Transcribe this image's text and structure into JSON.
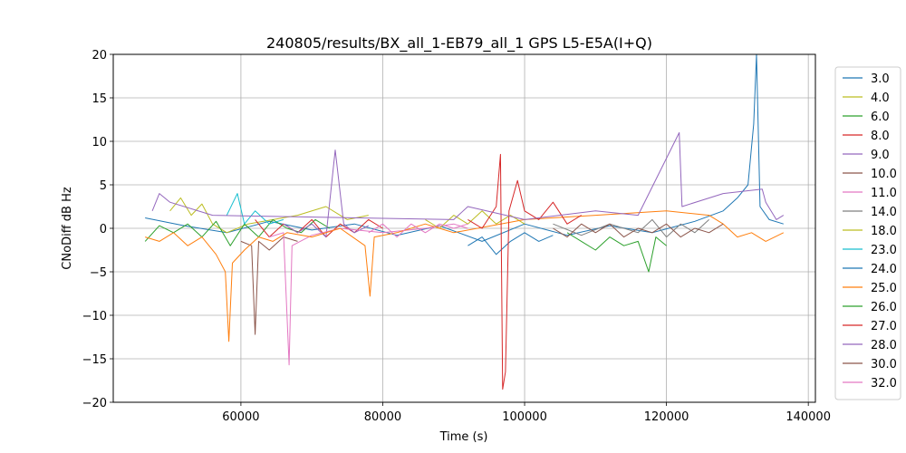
{
  "chart_data": {
    "type": "line",
    "title": "240805/results/BX_all_1-EB79_all_1 GPS L5-E5A(I+Q)",
    "xlabel": "Time (s)",
    "ylabel": "CNoDiff dB Hz",
    "xlim": [
      42000,
      141000
    ],
    "ylim": [
      -20,
      20
    ],
    "xticks": [
      60000,
      80000,
      100000,
      120000,
      140000
    ],
    "xtick_labels": [
      "60000",
      "80000",
      "100000",
      "120000",
      "140000"
    ],
    "yticks": [
      -20,
      -15,
      -10,
      -5,
      0,
      5,
      10,
      15,
      20
    ],
    "ytick_labels": [
      "−20",
      "−15",
      "−10",
      "−5",
      "0",
      "5",
      "10",
      "15",
      "20"
    ],
    "grid": true,
    "legend_position": "right-outside",
    "series": [
      {
        "name": "3.0",
        "color": "#1f77b4",
        "values": [
          [
            46500,
            1.2
          ],
          [
            52000,
            0.3
          ],
          [
            58000,
            -0.5
          ],
          [
            64000,
            0.8
          ],
          [
            70000,
            -0.2
          ],
          [
            76000,
            0.5
          ],
          [
            82000,
            -0.8
          ],
          [
            88000,
            0.3
          ],
          [
            94000,
            -1.5
          ],
          [
            100000,
            0.5
          ],
          [
            106000,
            -0.8
          ],
          [
            112000,
            0.3
          ],
          [
            118000,
            -0.5
          ],
          [
            124000,
            0.8
          ],
          [
            128000,
            2.0
          ],
          [
            130000,
            3.5
          ],
          [
            131500,
            5.0
          ],
          [
            132300,
            12.0
          ],
          [
            132700,
            20.0
          ],
          [
            133200,
            2.5
          ],
          [
            134500,
            1.0
          ],
          [
            136500,
            0.5
          ]
        ]
      },
      {
        "name": "4.0",
        "color": "#bcbd22",
        "values": [
          [
            50000,
            2.0
          ],
          [
            51500,
            3.5
          ],
          [
            53000,
            1.5
          ],
          [
            54500,
            2.8
          ],
          [
            56000,
            0.5
          ],
          [
            58000,
            -0.5
          ],
          [
            61000,
            0.5
          ],
          [
            68000,
            1.5
          ],
          [
            72000,
            2.5
          ],
          [
            75000,
            1.0
          ],
          [
            78000,
            1.5
          ]
        ]
      },
      {
        "name": "6.0",
        "color": "#2ca02c",
        "values": [
          [
            46500,
            -1.5
          ],
          [
            48500,
            0.3
          ],
          [
            50500,
            -0.5
          ],
          [
            52500,
            0.5
          ],
          [
            54500,
            -1.0
          ],
          [
            56500,
            0.8
          ],
          [
            58500,
            -2.0
          ],
          [
            60500,
            0.5
          ],
          [
            62500,
            -1.0
          ],
          [
            64500,
            1.0
          ],
          [
            66500,
            0.0
          ],
          [
            68500,
            -0.5
          ],
          [
            70500,
            1.0
          ],
          [
            72500,
            0.0
          ]
        ]
      },
      {
        "name": "8.0",
        "color": "#d62728",
        "values": [
          [
            62000,
            1.0
          ],
          [
            64000,
            -1.0
          ],
          [
            66000,
            0.5
          ],
          [
            68000,
            -0.5
          ],
          [
            70000,
            1.0
          ],
          [
            72000,
            -1.0
          ],
          [
            74000,
            0.5
          ],
          [
            76000,
            -0.5
          ],
          [
            78000,
            1.0
          ],
          [
            80000,
            0.0
          ]
        ]
      },
      {
        "name": "9.0",
        "color": "#9467bd",
        "values": [
          [
            66000,
            0.5
          ],
          [
            68000,
            -0.5
          ],
          [
            70000,
            0.5
          ],
          [
            72000,
            -1.0
          ],
          [
            73300,
            9.0
          ],
          [
            74500,
            0.5
          ],
          [
            76000,
            -0.5
          ],
          [
            78000,
            0.3
          ]
        ]
      },
      {
        "name": "10.0",
        "color": "#8c564b",
        "values": [
          [
            60000,
            -1.5
          ],
          [
            61500,
            -2.0
          ],
          [
            62000,
            -12.2
          ],
          [
            62500,
            -1.5
          ],
          [
            64000,
            -2.5
          ],
          [
            66000,
            -1.0
          ],
          [
            68000,
            -1.5
          ]
        ]
      },
      {
        "name": "11.0",
        "color": "#e377c2",
        "values": [
          [
            64000,
            -1.0
          ],
          [
            66000,
            -0.5
          ],
          [
            66800,
            -15.7
          ],
          [
            67200,
            -2.0
          ],
          [
            70000,
            -0.8
          ],
          [
            74000,
            0.0
          ],
          [
            80000,
            -0.5
          ],
          [
            86000,
            0.0
          ],
          [
            90000,
            0.5
          ],
          [
            92000,
            0.0
          ]
        ]
      },
      {
        "name": "14.0",
        "color": "#7f7f7f",
        "values": [
          [
            104000,
            0.5
          ],
          [
            108000,
            -0.8
          ],
          [
            112000,
            0.5
          ],
          [
            116000,
            -0.5
          ],
          [
            118000,
            1.0
          ],
          [
            120000,
            -1.0
          ],
          [
            122000,
            0.5
          ],
          [
            124000,
            -0.5
          ],
          [
            126000,
            1.0
          ]
        ]
      },
      {
        "name": "18.0",
        "color": "#bcbd22",
        "values": [
          [
            86000,
            1.0
          ],
          [
            88000,
            0.0
          ],
          [
            90000,
            1.5
          ],
          [
            92000,
            0.5
          ],
          [
            94000,
            2.0
          ],
          [
            96000,
            0.5
          ],
          [
            98000,
            1.5
          ],
          [
            100000,
            0.5
          ]
        ]
      },
      {
        "name": "23.0",
        "color": "#17becf",
        "values": [
          [
            58000,
            1.5
          ],
          [
            59500,
            4.0
          ],
          [
            60500,
            0.5
          ],
          [
            62000,
            2.0
          ],
          [
            64000,
            0.5
          ],
          [
            66000,
            1.0
          ]
        ]
      },
      {
        "name": "24.0",
        "color": "#1f77b4",
        "values": [
          [
            92000,
            -2.0
          ],
          [
            94000,
            -1.0
          ],
          [
            96000,
            -3.0
          ],
          [
            98000,
            -1.5
          ],
          [
            100000,
            -0.5
          ],
          [
            102000,
            -1.5
          ],
          [
            104000,
            -0.8
          ]
        ]
      },
      {
        "name": "25.0",
        "color": "#ff7f0e",
        "values": [
          [
            46500,
            -1.0
          ],
          [
            48500,
            -1.5
          ],
          [
            50500,
            -0.5
          ],
          [
            52500,
            -2.0
          ],
          [
            54500,
            -1.0
          ],
          [
            56500,
            -3.0
          ],
          [
            57800,
            -5.0
          ],
          [
            58300,
            -13.0
          ],
          [
            58800,
            -4.0
          ],
          [
            60500,
            -2.5
          ],
          [
            62500,
            -1.0
          ],
          [
            64500,
            -1.5
          ],
          [
            66500,
            -0.5
          ],
          [
            70000,
            -1.0
          ],
          [
            74000,
            0.0
          ],
          [
            77500,
            -2.0
          ],
          [
            78200,
            -7.8
          ],
          [
            78800,
            -1.0
          ],
          [
            82000,
            -0.5
          ],
          [
            86000,
            0.5
          ],
          [
            90000,
            -0.5
          ],
          [
            100000,
            1.0
          ],
          [
            110000,
            1.5
          ],
          [
            120000,
            2.0
          ],
          [
            126000,
            1.5
          ],
          [
            128000,
            0.5
          ],
          [
            130000,
            -1.0
          ],
          [
            132000,
            -0.5
          ],
          [
            134000,
            -1.5
          ],
          [
            136500,
            -0.5
          ]
        ]
      },
      {
        "name": "26.0",
        "color": "#2ca02c",
        "values": [
          [
            106000,
            -0.5
          ],
          [
            108000,
            -1.5
          ],
          [
            110000,
            -2.5
          ],
          [
            112000,
            -1.0
          ],
          [
            114000,
            -2.0
          ],
          [
            116000,
            -1.5
          ],
          [
            117500,
            -5.0
          ],
          [
            118500,
            -1.0
          ],
          [
            120000,
            -2.0
          ]
        ]
      },
      {
        "name": "27.0",
        "color": "#d62728",
        "values": [
          [
            92000,
            1.0
          ],
          [
            94000,
            0.0
          ],
          [
            96000,
            2.5
          ],
          [
            96600,
            8.5
          ],
          [
            96900,
            -18.5
          ],
          [
            97300,
            -16.5
          ],
          [
            97800,
            2.0
          ],
          [
            99000,
            5.5
          ],
          [
            100000,
            2.0
          ],
          [
            102000,
            1.0
          ],
          [
            104000,
            3.0
          ],
          [
            106000,
            0.5
          ],
          [
            108000,
            1.5
          ]
        ]
      },
      {
        "name": "28.0",
        "color": "#9467bd",
        "values": [
          [
            47500,
            2.0
          ],
          [
            48500,
            4.0
          ],
          [
            50000,
            3.0
          ],
          [
            56000,
            1.5
          ],
          [
            90000,
            1.0
          ],
          [
            92000,
            2.5
          ],
          [
            100000,
            1.0
          ],
          [
            110000,
            2.0
          ],
          [
            116000,
            1.5
          ],
          [
            121800,
            11.0
          ],
          [
            122200,
            2.5
          ],
          [
            128000,
            4.0
          ],
          [
            133500,
            4.5
          ],
          [
            134000,
            3.0
          ],
          [
            135500,
            1.0
          ],
          [
            136500,
            1.5
          ]
        ]
      },
      {
        "name": "30.0",
        "color": "#8c564b",
        "values": [
          [
            104000,
            0.0
          ],
          [
            106000,
            -1.0
          ],
          [
            108000,
            0.5
          ],
          [
            110000,
            -0.5
          ],
          [
            112000,
            0.5
          ],
          [
            114000,
            -1.0
          ],
          [
            116000,
            0.0
          ],
          [
            118000,
            -0.5
          ],
          [
            120000,
            0.5
          ],
          [
            122000,
            -1.0
          ],
          [
            124000,
            0.0
          ],
          [
            126000,
            -0.5
          ],
          [
            128000,
            0.5
          ]
        ]
      },
      {
        "name": "32.0",
        "color": "#e377c2",
        "values": [
          [
            78000,
            -0.5
          ],
          [
            80000,
            0.5
          ],
          [
            82000,
            -1.0
          ],
          [
            84000,
            0.5
          ],
          [
            86000,
            -0.5
          ],
          [
            88000,
            0.5
          ],
          [
            90000,
            0.0
          ],
          [
            92000,
            0.5
          ]
        ]
      }
    ]
  }
}
